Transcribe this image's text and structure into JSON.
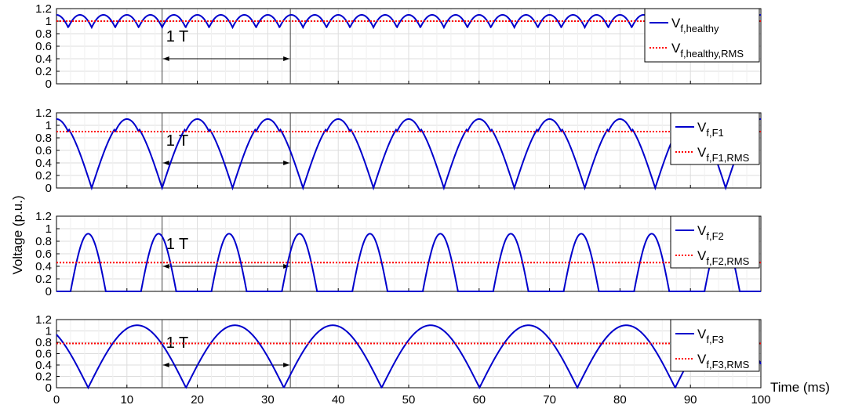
{
  "chart_data": {
    "type": "line",
    "ylabel": "Voltage  (p.u.)",
    "xlabel": "Time (ms)",
    "xlim": [
      0,
      100
    ],
    "x_ticks": [
      "0",
      "10",
      "20",
      "30",
      "40",
      "50",
      "60",
      "70",
      "80",
      "90",
      "100"
    ],
    "y_ticks": [
      "0",
      "0.2",
      "0.4",
      "0.6",
      "0.8",
      "1",
      "1.2"
    ],
    "ylim": [
      0,
      1.2
    ],
    "grid": true,
    "period_marker": {
      "label": "1 T",
      "x_start": 15,
      "x_end": 33.2,
      "y": 0.4
    },
    "colors": {
      "waveform": "#0000cc",
      "rms": "#ff0000"
    },
    "subplots": [
      {
        "id": "healthy",
        "series": [
          {
            "name": "V",
            "sub": "f,healthy",
            "style": "solid",
            "waveform": "six-pulse",
            "peak": 1.1,
            "valley": 0.9
          },
          {
            "name": "V",
            "sub": "f,healthy,RMS",
            "style": "dotted",
            "value": 1.0
          }
        ]
      },
      {
        "id": "F1",
        "series": [
          {
            "name": "V",
            "sub": "f,F1",
            "style": "solid",
            "waveform": "fault-F1",
            "peak": 1.1,
            "min": 0
          },
          {
            "name": "V",
            "sub": "f,F1,RMS",
            "style": "dotted",
            "value": 0.9
          }
        ]
      },
      {
        "id": "F2",
        "series": [
          {
            "name": "V",
            "sub": "f,F2",
            "style": "solid",
            "waveform": "fault-F2",
            "peak": 0.92,
            "min": 0
          },
          {
            "name": "V",
            "sub": "f,F2,RMS",
            "style": "dotted",
            "value": 0.46
          }
        ]
      },
      {
        "id": "F3",
        "series": [
          {
            "name": "V",
            "sub": "f,F3",
            "style": "solid",
            "waveform": "fault-F3",
            "peak": 1.1,
            "min": 0
          },
          {
            "name": "V",
            "sub": "f,F3,RMS",
            "style": "dotted",
            "value": 0.78
          }
        ]
      }
    ]
  }
}
